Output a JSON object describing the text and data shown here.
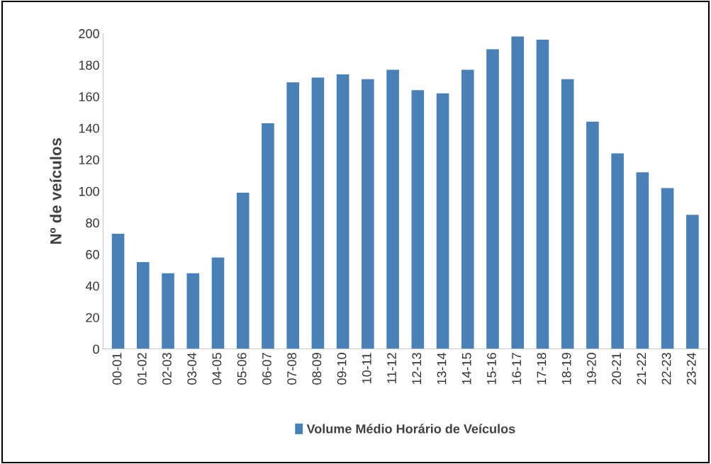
{
  "chart_data": {
    "type": "bar",
    "ylabel": "Nº de veículos",
    "categories": [
      "00-01",
      "01-02",
      "02-03",
      "03-04",
      "04-05",
      "05-06",
      "06-07",
      "07-08",
      "08-09",
      "09-10",
      "10-11",
      "11-12",
      "12-13",
      "13-14",
      "14-15",
      "15-16",
      "16-17",
      "17-18",
      "18-19",
      "19-20",
      "20-21",
      "21-22",
      "22-23",
      "23-24"
    ],
    "series": [
      {
        "name": "Volume Médio Horário de Veículos",
        "color": "#4a80b8",
        "values": [
          73,
          55,
          48,
          48,
          58,
          99,
          143,
          169,
          172,
          174,
          171,
          177,
          164,
          162,
          177,
          190,
          198,
          196,
          171,
          144,
          124,
          112,
          102,
          85
        ]
      }
    ],
    "ylim": [
      0,
      200
    ],
    "yticks": [
      0,
      20,
      40,
      60,
      80,
      100,
      120,
      140,
      160,
      180,
      200
    ],
    "grid": false,
    "legend": "bottom"
  }
}
